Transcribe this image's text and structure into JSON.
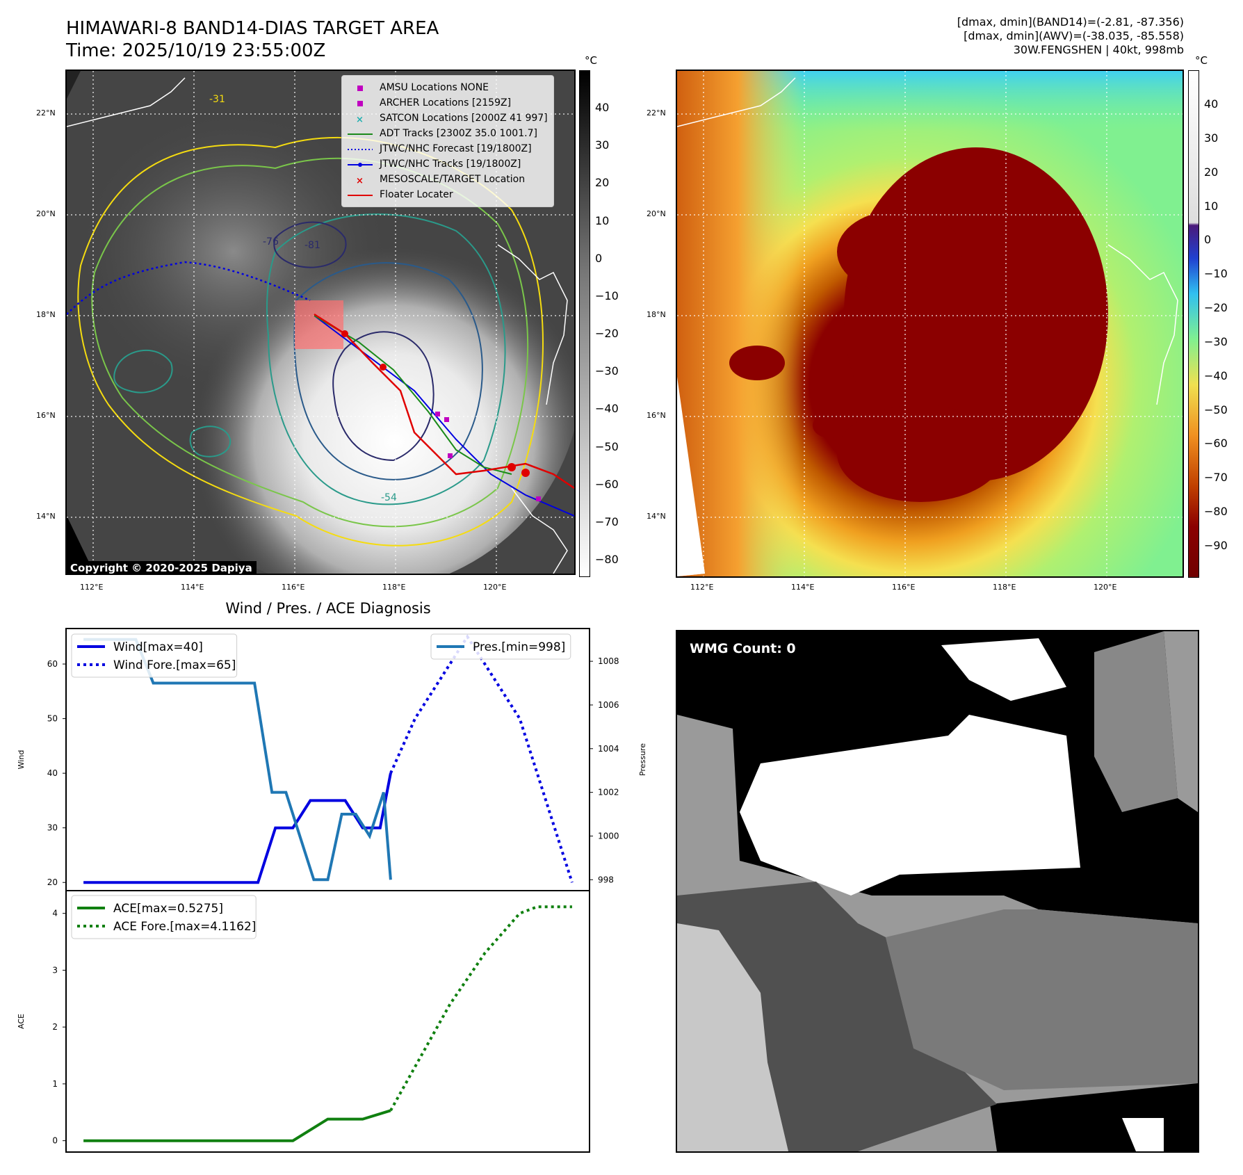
{
  "header": {
    "title_line1": "HIMAWARI-8 BAND14-DIAS TARGET AREA",
    "title_line2": "Time: 2025/10/19 23:55:00Z",
    "right_line1": "[dmax, dmin](BAND14)=(-2.81, -87.356)",
    "right_line2": "[dmax, dmin](AWV)=(-38.035, -85.558)",
    "right_line3": "30W.FENGSHEN | 40kt, 998mb"
  },
  "map_axes": {
    "lat_labels": [
      "22°N",
      "20°N",
      "18°N",
      "16°N",
      "14°N"
    ],
    "lon_labels": [
      "112°E",
      "114°E",
      "116°E",
      "118°E",
      "120°E"
    ]
  },
  "band14_colorbar": {
    "unit": "°C",
    "ticks": [
      "40",
      "30",
      "20",
      "10",
      "0",
      "−10",
      "−20",
      "−30",
      "−40",
      "−50",
      "−60",
      "−70",
      "−80"
    ]
  },
  "awv_colorbar": {
    "unit": "°C",
    "ticks": [
      "40",
      "30",
      "20",
      "10",
      "0",
      "−10",
      "−20",
      "−30",
      "−40",
      "−50",
      "−60",
      "−70",
      "−80",
      "−90"
    ]
  },
  "map_legend": [
    {
      "label": "AMSU Locations NONE",
      "kind": "square",
      "color": "#c000c0"
    },
    {
      "label": "ARCHER Locations [2159Z]",
      "kind": "square",
      "color": "#c000c0"
    },
    {
      "label": "SATCON Locations [2000Z 41 997]",
      "kind": "x",
      "color": "#20b0b0"
    },
    {
      "label": "ADT Tracks [2300Z 35.0 1001.7]",
      "kind": "line",
      "color": "#1a8a1a"
    },
    {
      "label": "JTWC/NHC Forecast [19/1800Z]",
      "kind": "dotted",
      "color": "#0000e0"
    },
    {
      "label": "JTWC/NHC Tracks [19/1800Z]",
      "kind": "line-dot",
      "color": "#0000e0"
    },
    {
      "label": "MESOSCALE/TARGET Location",
      "kind": "x",
      "color": "#e00000"
    },
    {
      "label": "Floater Locater",
      "kind": "line",
      "color": "#e00000"
    }
  ],
  "contour_labels": [
    "-31",
    "-54",
    "-76",
    "-81"
  ],
  "copyright": "Copyright © 2020-2025 Dapiya",
  "diagnosis_title": "Wind / Pres. / ACE Diagnosis",
  "wmg_label": "WMG Count: 0",
  "colors": {
    "wind": "#0000e0",
    "pressure": "#1f77b4",
    "ace": "#108010"
  },
  "chart_data": [
    {
      "type": "line",
      "title": "Wind / Pres. / ACE Diagnosis",
      "ylabel": "Wind",
      "y2label": "Pressure",
      "ylim": [
        18.5,
        66.5
      ],
      "y2lim": [
        997.5,
        1009.5
      ],
      "yticks": [
        20,
        30,
        40,
        50,
        60
      ],
      "y2ticks": [
        998,
        1000,
        1002,
        1004,
        1006,
        1008
      ],
      "xlim": [
        -1,
        29
      ],
      "series": [
        {
          "name": "Wind[max=40]",
          "style": "solid",
          "axis": "left",
          "x": [
            0,
            10,
            11,
            12,
            13,
            14,
            15,
            16,
            17,
            17.6
          ],
          "values": [
            20,
            20,
            30,
            30,
            35,
            35,
            35,
            30,
            30,
            40
          ]
        },
        {
          "name": "Wind Fore.[max=65]",
          "style": "dotted",
          "axis": "left",
          "x": [
            17.6,
            19,
            21,
            22,
            23,
            24,
            25,
            26,
            27,
            28
          ],
          "values": [
            40,
            50,
            60,
            65,
            60,
            55,
            50,
            40,
            30,
            20
          ]
        },
        {
          "name": "Pres.[min=998]",
          "style": "solid",
          "axis": "right",
          "x": [
            0,
            3,
            4,
            9,
            9.8,
            10.8,
            11.6,
            12.4,
            13.2,
            14,
            14.8,
            15.6,
            16.4,
            17.2,
            17.6
          ],
          "values": [
            1009,
            1009,
            1007,
            1007,
            1007,
            1002,
            1002,
            1000,
            998,
            998,
            1001,
            1001,
            1000,
            1002,
            998
          ]
        }
      ]
    },
    {
      "type": "line",
      "ylabel": "ACE",
      "ylim": [
        -0.2,
        4.4
      ],
      "yticks": [
        0,
        1,
        2,
        3,
        4
      ],
      "xlim": [
        -1,
        29
      ],
      "series": [
        {
          "name": "ACE[max=0.5275]",
          "style": "solid",
          "x": [
            0,
            12,
            14,
            16,
            17.6
          ],
          "values": [
            0,
            0,
            0.38,
            0.38,
            0.53
          ]
        },
        {
          "name": "ACE Fore.[max=4.1162]",
          "style": "dotted",
          "x": [
            17.6,
            19,
            21,
            23,
            25,
            26,
            27,
            28
          ],
          "values": [
            0.53,
            1.3,
            2.4,
            3.3,
            4.0,
            4.1162,
            4.1162,
            4.1162
          ]
        }
      ]
    }
  ]
}
